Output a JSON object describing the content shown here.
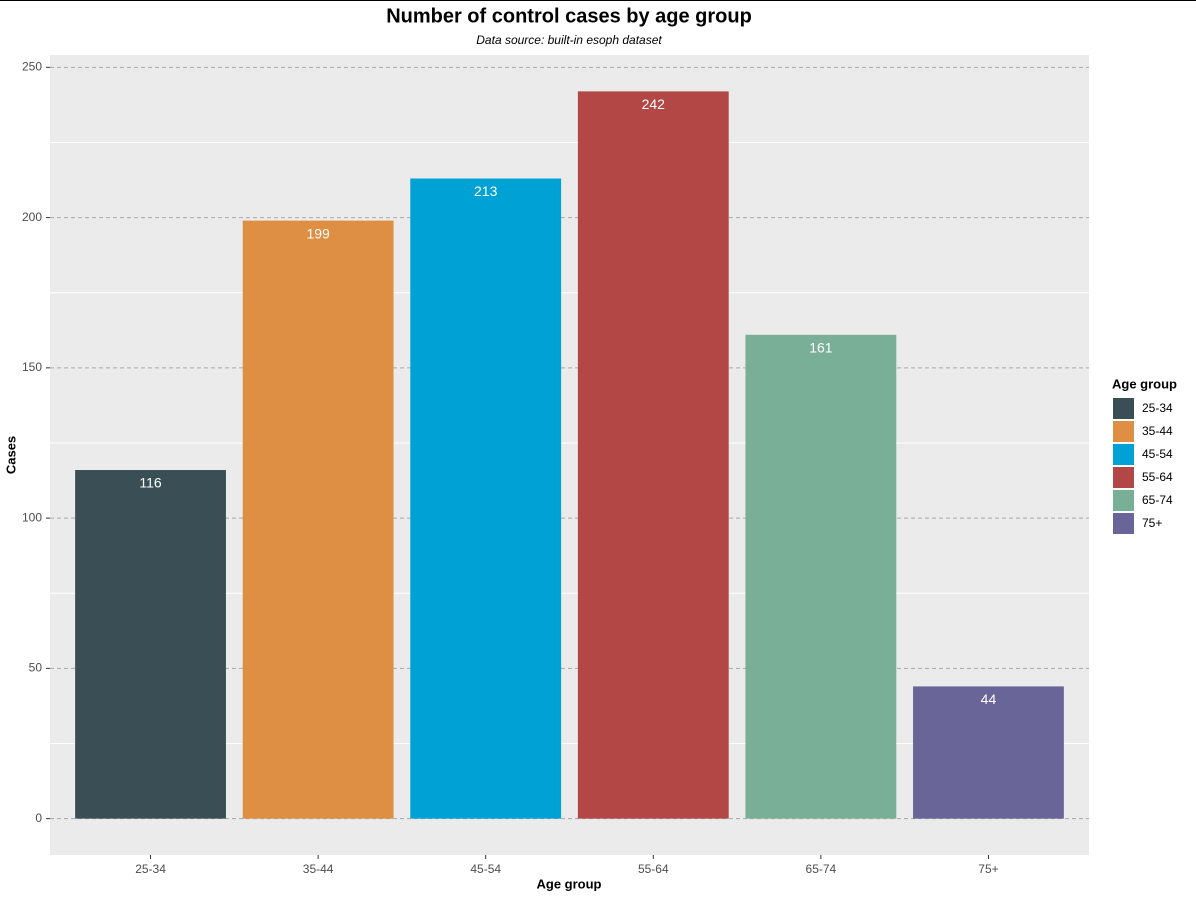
{
  "chart_data": {
    "type": "bar",
    "title": "Number of control cases by age group",
    "subtitle": "Data source: built-in esoph dataset",
    "x_label": "Age group",
    "y_label": "Cases",
    "legend_title": "Age group",
    "categories": [
      "25-34",
      "35-44",
      "45-54",
      "55-64",
      "65-74",
      "75+"
    ],
    "values": [
      116,
      199,
      213,
      242,
      161,
      44
    ],
    "colors": [
      "#3a4f55",
      "#de8f44",
      "#00a1d5",
      "#b24745",
      "#79af97",
      "#6a6599"
    ],
    "ylim": [
      -12.1,
      254.1
    ],
    "yticks": [
      0,
      50,
      100,
      150,
      200,
      250
    ],
    "grid": true,
    "legend": "right"
  }
}
